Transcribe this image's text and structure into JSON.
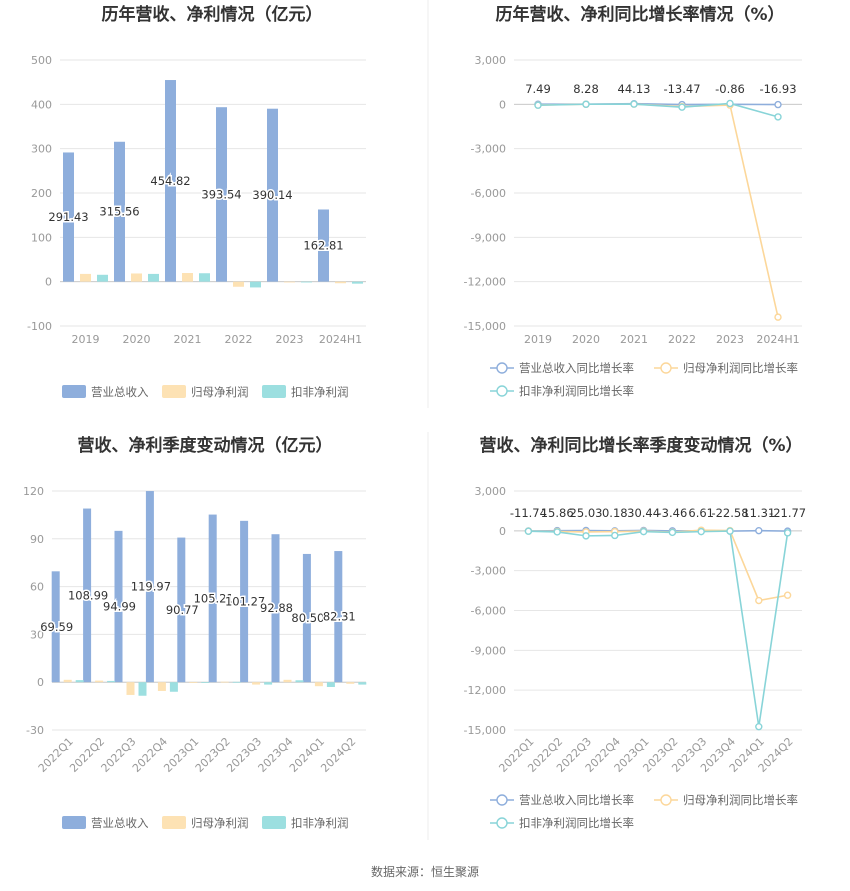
{
  "source": "数据来源：恒生聚源",
  "colors": {
    "revenue": "#8eaedc",
    "net_parent": "#fde2b4",
    "net_deducted": "#9cdfe0",
    "revenue_line": "#8eaedc",
    "net_parent_line": "#fcd79a",
    "net_deducted_line": "#88d4d8",
    "grid": "#e6e6e6"
  },
  "chart_data": [
    {
      "type": "bar",
      "title": "历年营收、净利情况（亿元）",
      "categories": [
        "2019",
        "2020",
        "2021",
        "2022",
        "2023",
        "2024H1"
      ],
      "ylim": [
        -100,
        500
      ],
      "yticks": [
        -100,
        0,
        100,
        200,
        300,
        400,
        500
      ],
      "series": [
        {
          "name": "营业总收入",
          "values": [
            291.43,
            315.56,
            454.82,
            393.54,
            390.14,
            162.81
          ]
        },
        {
          "name": "归母净利润",
          "values": [
            17.5,
            18.5,
            19.5,
            -11.5,
            -0.5,
            -3.5
          ]
        },
        {
          "name": "扣非净利润",
          "values": [
            15.5,
            17.5,
            19,
            -13,
            -1,
            -4.5
          ]
        }
      ],
      "data_labels": [
        "291.43",
        "315.56",
        "454.82",
        "393.54",
        "390.14",
        "162.81"
      ],
      "legend": "bottom"
    },
    {
      "type": "line",
      "title": "历年营收、净利同比增长率情况（%）",
      "categories": [
        "2019",
        "2020",
        "2021",
        "2022",
        "2023",
        "2024H1"
      ],
      "ylim": [
        -15000,
        3000
      ],
      "yticks": [
        -15000,
        -12000,
        -9000,
        -6000,
        -3000,
        0,
        3000
      ],
      "series": [
        {
          "name": "营业总收入同比增长率",
          "values": [
            7.49,
            8.28,
            44.13,
            -13.47,
            -0.86,
            -16.93
          ]
        },
        {
          "name": "归母净利润同比增长率",
          "values": [
            -50,
            5,
            10,
            -150,
            -50,
            -14400
          ]
        },
        {
          "name": "扣非净利润同比增长率",
          "values": [
            -60,
            5,
            15,
            -190,
            60,
            -850
          ]
        }
      ],
      "data_labels": [
        "7.49",
        "8.28",
        "44.13",
        "-13.47",
        "-0.86",
        "-16.93"
      ],
      "legend": "bottom"
    },
    {
      "type": "bar",
      "title": "营收、净利季度变动情况（亿元）",
      "categories": [
        "2022Q1",
        "2022Q2",
        "2022Q3",
        "2022Q4",
        "2023Q1",
        "2023Q2",
        "2023Q3",
        "2023Q4",
        "2024Q1",
        "2024Q2"
      ],
      "ylim": [
        -30,
        120
      ],
      "yticks": [
        -30,
        0,
        30,
        60,
        90,
        120
      ],
      "series": [
        {
          "name": "营业总收入",
          "values": [
            69.59,
            108.99,
            94.99,
            119.97,
            90.77,
            105.21,
            101.27,
            92.88,
            80.5,
            82.31
          ]
        },
        {
          "name": "归母净利润",
          "values": [
            1.5,
            1,
            -8,
            -5.5,
            -0.2,
            0.3,
            -1.5,
            1.5,
            -2.5,
            -1
          ]
        },
        {
          "name": "扣非净利润",
          "values": [
            1.3,
            0.8,
            -8.5,
            -6,
            -0.3,
            0.2,
            -1.5,
            1.2,
            -3,
            -1.5
          ]
        }
      ],
      "data_labels": [
        "69.59",
        "108.99",
        "94.99",
        "119.97",
        "90.77",
        "105.21",
        "101.27",
        "92.88",
        "80.50",
        "82.31"
      ],
      "legend": "bottom"
    },
    {
      "type": "line",
      "title": "营收、净利同比增长率季度变动情况（%）",
      "categories": [
        "2022Q1",
        "2022Q2",
        "2022Q3",
        "2022Q4",
        "2023Q1",
        "2023Q2",
        "2023Q3",
        "2023Q4",
        "2024Q1",
        "2024Q2"
      ],
      "ylim": [
        -15000,
        3000
      ],
      "yticks": [
        -15000,
        -12000,
        -9000,
        -6000,
        -3000,
        0,
        3000
      ],
      "series": [
        {
          "name": "营业总收入同比增长率",
          "values": [
            -11.74,
            15.86,
            25.03,
            0.18,
            30.44,
            -3.46,
            6.61,
            -22.58,
            11.31,
            -21.77
          ]
        },
        {
          "name": "归母净利润同比增长率",
          "values": [
            -20,
            -50,
            -80,
            -60,
            -30,
            -100,
            50,
            20,
            -5250,
            -4850
          ]
        },
        {
          "name": "扣非净利润同比增长率",
          "values": [
            -30,
            -80,
            -380,
            -350,
            -60,
            -120,
            -60,
            -20,
            -14750,
            -150
          ]
        }
      ],
      "data_labels": [
        "-11.74",
        "15.86",
        "25.03",
        "0.18",
        "30.44",
        "-3.46",
        "6.61",
        "-22.58",
        "11.31",
        "-21.77"
      ],
      "legend": "bottom"
    }
  ]
}
